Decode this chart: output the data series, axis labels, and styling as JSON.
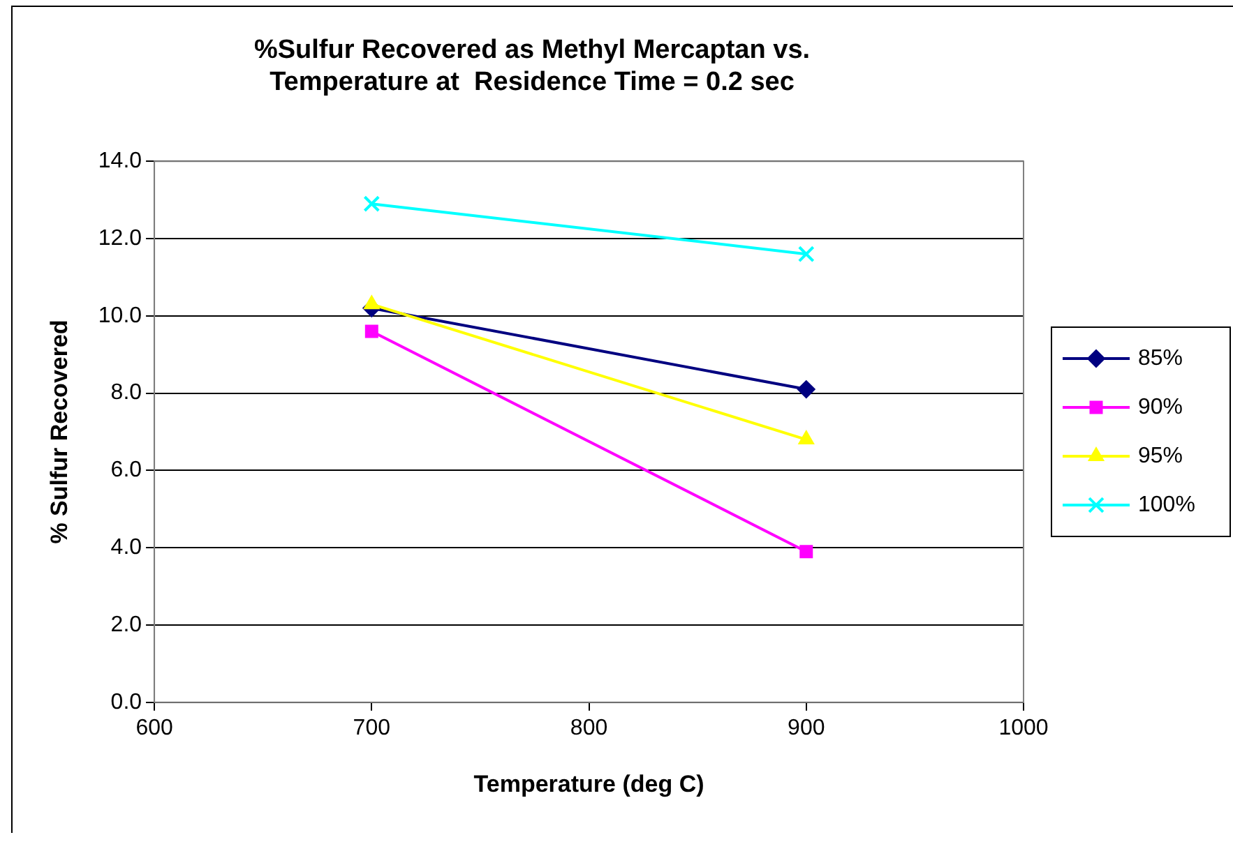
{
  "chart_data": {
    "type": "line",
    "title": [
      "%Sulfur Recovered as Methyl Mercaptan vs.",
      "Temperature at  Residence Time = 0.2 sec"
    ],
    "xlabel": "Temperature (deg C)",
    "ylabel": "% Sulfur Recovered",
    "x": [
      700,
      900
    ],
    "series": [
      {
        "name": "85%",
        "color": "#000080",
        "marker": "diamond",
        "values": [
          10.2,
          8.1
        ]
      },
      {
        "name": "90%",
        "color": "#ff00ff",
        "marker": "square",
        "values": [
          9.6,
          3.9
        ]
      },
      {
        "name": "95%",
        "color": "#ffff00",
        "marker": "triangle",
        "values": [
          10.3,
          6.8
        ]
      },
      {
        "name": "100%",
        "color": "#00ffff",
        "marker": "cross",
        "values": [
          12.9,
          11.6
        ]
      }
    ],
    "xlim": [
      600,
      1000
    ],
    "xticks": [
      600,
      700,
      800,
      900,
      1000
    ],
    "ylim": [
      0,
      14
    ],
    "yticks": [
      {
        "value": 0,
        "label": "0.0"
      },
      {
        "value": 2,
        "label": "2.0"
      },
      {
        "value": 4,
        "label": "4.0"
      },
      {
        "value": 6,
        "label": "6.0"
      },
      {
        "value": 8,
        "label": "8.0"
      },
      {
        "value": 10,
        "label": "10.0"
      },
      {
        "value": 12,
        "label": "12.0"
      },
      {
        "value": 14,
        "label": "14.0"
      }
    ],
    "grid": "y",
    "legend": "right"
  }
}
